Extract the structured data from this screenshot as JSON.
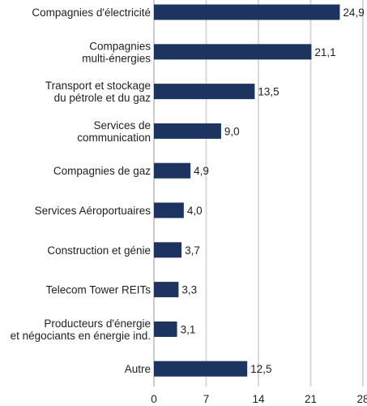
{
  "chart_data": {
    "type": "bar",
    "orientation": "horizontal",
    "categories": [
      [
        "Compagnies d'électricité"
      ],
      [
        "Compagnies",
        "multi-énergies"
      ],
      [
        "Transport et stockage",
        "du pétrole et du gaz"
      ],
      [
        "Services de",
        "communication"
      ],
      [
        "Compagnies de gaz"
      ],
      [
        "Services Aéroportuaires"
      ],
      [
        "Construction et génie"
      ],
      [
        "Telecom Tower REITs"
      ],
      [
        "Producteurs d'énergie",
        "et négociants en énergie ind."
      ],
      [
        "Autre"
      ]
    ],
    "values": [
      24.9,
      21.1,
      13.5,
      9.0,
      4.9,
      4.0,
      3.7,
      3.3,
      3.1,
      12.5
    ],
    "value_labels": [
      "24,9",
      "21,1",
      "13,5",
      "9,0",
      "4,9",
      "4,0",
      "3,7",
      "3,3",
      "3,1",
      "12,5"
    ],
    "xticks": [
      0,
      7,
      14,
      21,
      28
    ],
    "xlim": [
      0,
      28
    ],
    "grid": "vertical",
    "bar_color": "#1d3461",
    "grid_color": "#d9d9d9",
    "title": "",
    "xlabel": "",
    "ylabel": ""
  }
}
